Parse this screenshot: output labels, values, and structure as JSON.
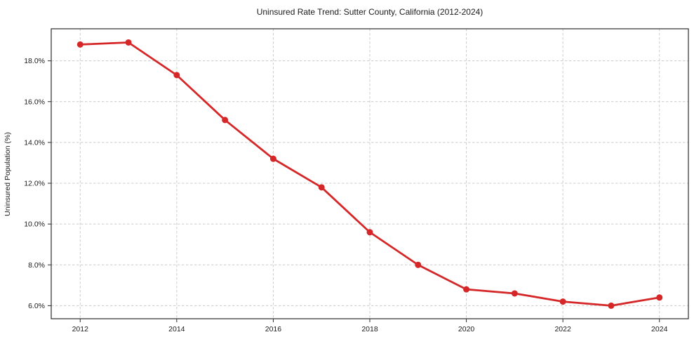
{
  "chart_data": {
    "type": "line",
    "title": "Uninsured Rate Trend: Sutter County, California (2012-2024)",
    "xlabel": "",
    "ylabel": "Uninsured Population (%)",
    "x": [
      2012,
      2013,
      2014,
      2015,
      2016,
      2017,
      2018,
      2019,
      2020,
      2021,
      2022,
      2023,
      2024
    ],
    "values": [
      18.8,
      18.9,
      17.3,
      15.1,
      13.2,
      11.8,
      9.6,
      8.0,
      6.8,
      6.6,
      6.2,
      6.0,
      6.4
    ],
    "x_ticks": [
      2012,
      2014,
      2016,
      2018,
      2020,
      2022,
      2024
    ],
    "x_tick_labels": [
      "2012",
      "2014",
      "2016",
      "2018",
      "2020",
      "2022",
      "2024"
    ],
    "y_ticks": [
      6,
      8,
      10,
      12,
      14,
      16,
      18
    ],
    "y_tick_labels": [
      "6.0%",
      "8.0%",
      "10.0%",
      "12.0%",
      "14.0%",
      "16.0%",
      "18.0%"
    ],
    "xlim": [
      2011.4,
      2024.6
    ],
    "ylim": [
      5.36,
      19.57
    ],
    "grid": true,
    "grid_style": "dashed",
    "legend": "none",
    "line_color": "#d62728",
    "marker": "circle",
    "grid_color": "#cccccc",
    "axis_color": "#2b2b2b",
    "text_color": "#1a1a1a",
    "background": "#ffffff"
  }
}
